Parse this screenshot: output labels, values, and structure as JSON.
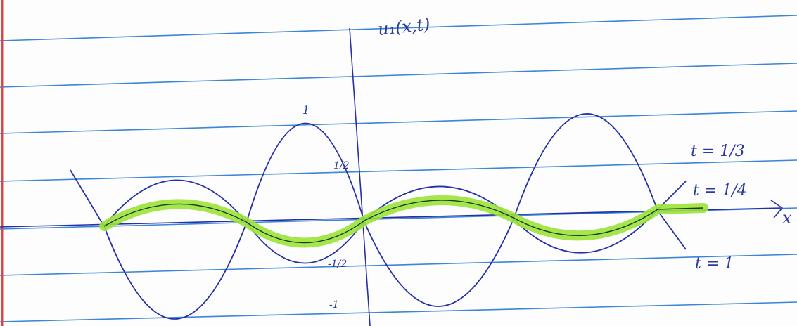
{
  "function_label": "u₁(x,t)",
  "axis_label": "x",
  "y_marks": [
    "1",
    "1/2",
    "-1/2",
    "-1"
  ],
  "curve_labels": [
    "t = 1/3",
    "t = 1/4",
    "t = 1"
  ]
}
